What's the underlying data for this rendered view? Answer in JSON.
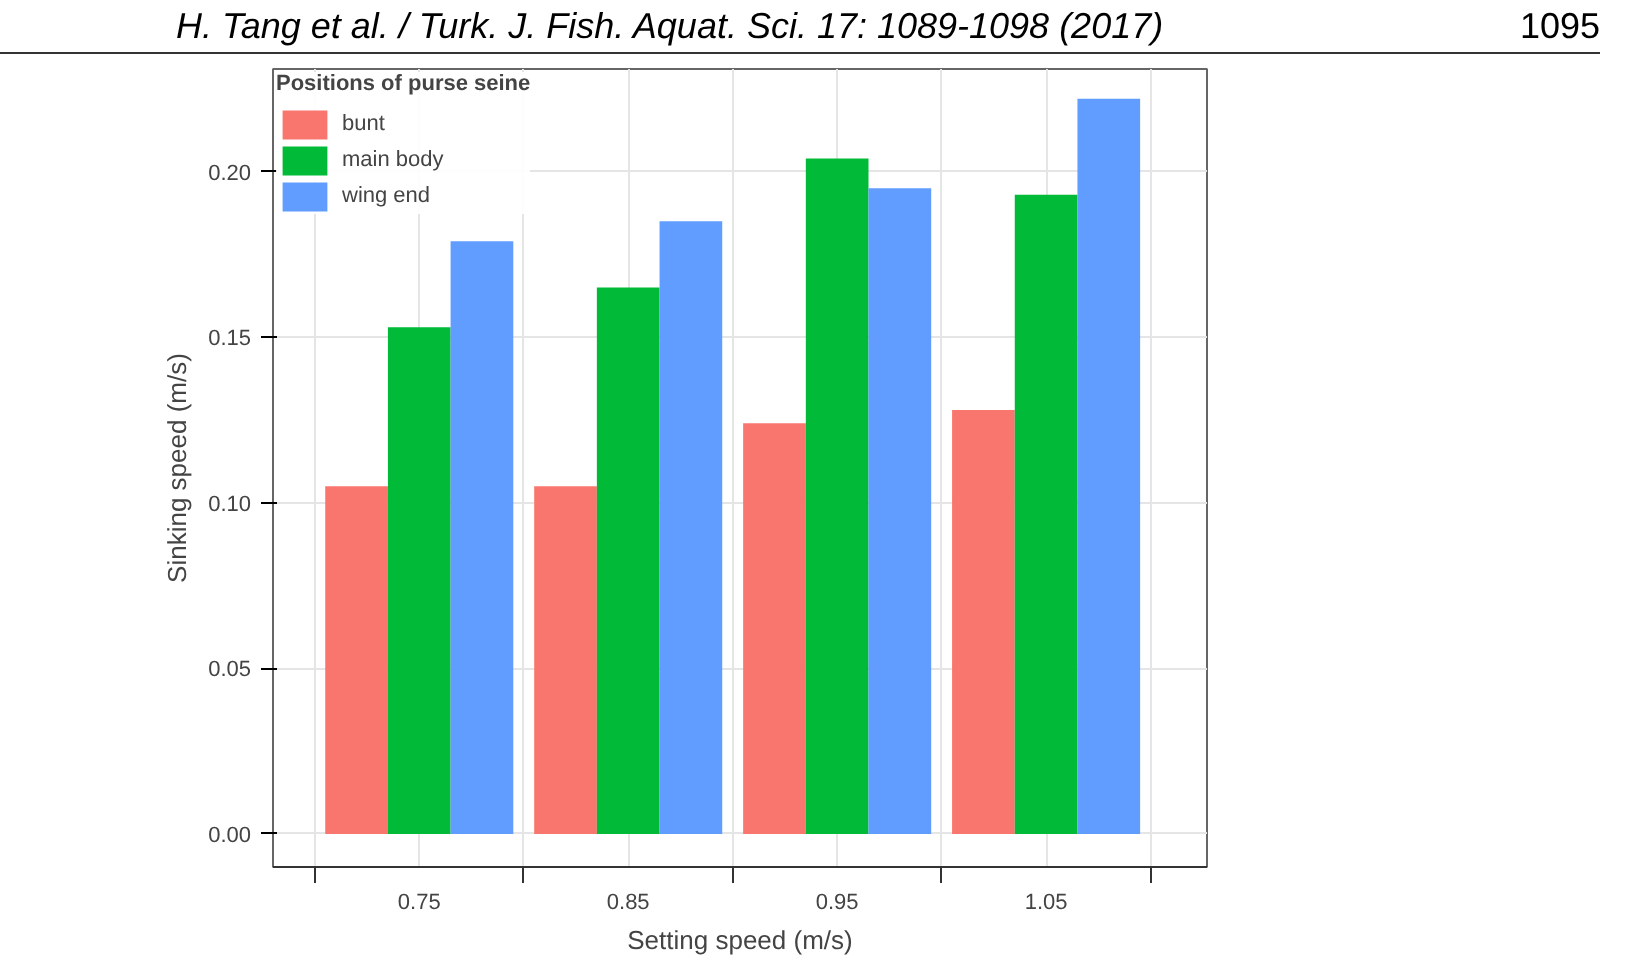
{
  "chart_data": {
    "type": "bar",
    "annotations": [
      "H. Tang et al.  /  Turk. J. Fish. Aquat. Sci. 17: 1089-1098 (2017)",
      "1095"
    ],
    "xlabel": "Setting speed (m/s)",
    "ylabel": "Sinking speed (m/s)",
    "legend_title": "Positions of purse seine",
    "categories": [
      "0.75",
      "0.85",
      "0.95",
      "1.05"
    ],
    "series": [
      {
        "name": "bunt",
        "color": "#f8766d",
        "values": [
          0.105,
          0.105,
          0.124,
          0.128
        ]
      },
      {
        "name": "main body",
        "color": "#00ba38",
        "values": [
          0.153,
          0.165,
          0.204,
          0.193
        ]
      },
      {
        "name": "wing end",
        "color": "#619cff",
        "values": [
          0.179,
          0.185,
          0.195,
          0.222
        ]
      }
    ],
    "ylim": [
      -0.01,
      0.231
    ],
    "yticks": [
      {
        "value": 0,
        "label": "0.00"
      },
      {
        "value": 0.05,
        "label": "0.05"
      },
      {
        "value": 0.1,
        "label": "0.10"
      },
      {
        "value": 0.15,
        "label": "0.15"
      },
      {
        "value": 0.2,
        "label": "0.20"
      }
    ],
    "grid": true,
    "legend": "top left"
  }
}
